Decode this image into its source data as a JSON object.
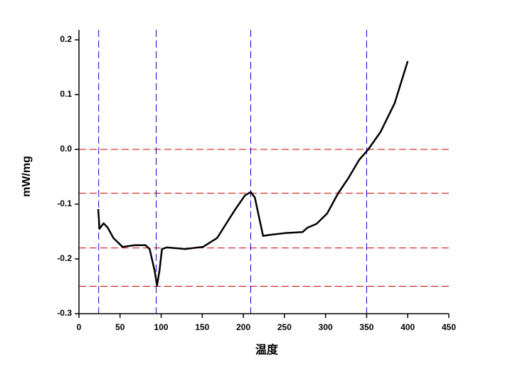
{
  "chart_data": {
    "type": "line",
    "xlabel": "温度",
    "ylabel": "mW/mg",
    "x": [
      23.4,
      25,
      30,
      35,
      42,
      53,
      68,
      81,
      86,
      92,
      95,
      98,
      101,
      107,
      129,
      151,
      168,
      190,
      202,
      209,
      214,
      220,
      224,
      233,
      250,
      272,
      278,
      289,
      302,
      315,
      328,
      341,
      352,
      367,
      384,
      400
    ],
    "series": [
      {
        "color": "#000000",
        "values": [
          -0.109,
          -0.145,
          -0.135,
          -0.143,
          -0.162,
          -0.178,
          -0.175,
          -0.175,
          -0.182,
          -0.221,
          -0.249,
          -0.221,
          -0.182,
          -0.179,
          -0.182,
          -0.178,
          -0.162,
          -0.11,
          -0.084,
          -0.078,
          -0.088,
          -0.13,
          -0.158,
          -0.156,
          -0.153,
          -0.151,
          -0.143,
          -0.136,
          -0.117,
          -0.081,
          -0.052,
          -0.019,
          0.0,
          0.032,
          0.084,
          0.161
        ]
      }
    ],
    "xlim": [
      0,
      450
    ],
    "xticks": [
      0,
      50,
      100,
      150,
      200,
      250,
      300,
      350,
      400,
      450
    ],
    "ylim": [
      -0.3,
      0.2
    ],
    "yticks": [
      -0.3,
      -0.2,
      -0.1,
      {
        "value": 0,
        "label": "0.0"
      },
      0.1,
      0.2
    ],
    "vlines": [
      24,
      94,
      209,
      350
    ],
    "vline_color": "#0000cc",
    "hlines": [
      0,
      -0.08,
      -0.18,
      -0.25
    ],
    "hline_color": "#cc0000"
  }
}
